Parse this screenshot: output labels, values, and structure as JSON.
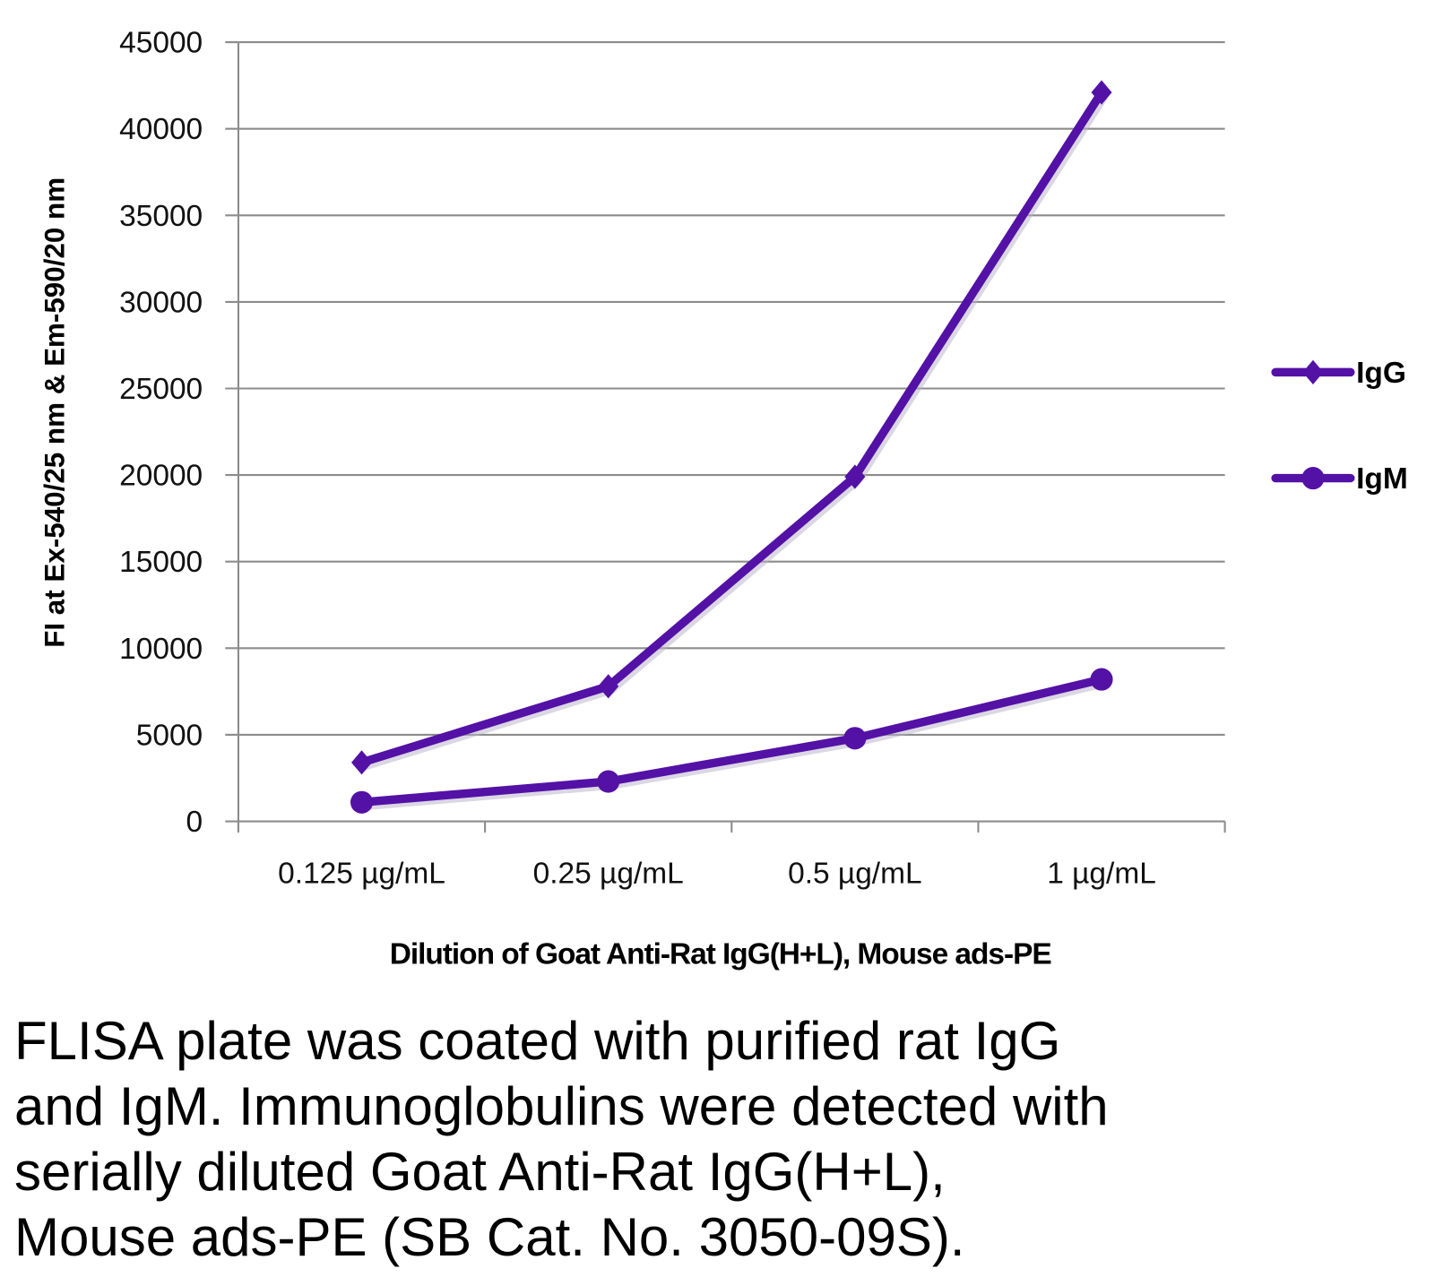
{
  "chart_data": {
    "type": "line",
    "title": "",
    "xlabel": "Dilution of Goat Anti-Rat IgG(H+L), Mouse ads-PE",
    "ylabel": "FI at Ex-540/25 nm & Em-590/20 nm",
    "categories": [
      "0.125 µg/mL",
      "0.25 µg/mL",
      "0.5 µg/mL",
      "1 µg/mL"
    ],
    "ylim": [
      0,
      45000
    ],
    "yticks": [
      "0",
      "5000",
      "10000",
      "15000",
      "20000",
      "25000",
      "30000",
      "35000",
      "40000",
      "45000"
    ],
    "grid": true,
    "legend_position": "right",
    "series": [
      {
        "name": "IgG",
        "marker": "diamond",
        "color": "#5311a6",
        "values": [
          3400,
          7800,
          19900,
          42100
        ]
      },
      {
        "name": "IgM",
        "marker": "circle",
        "color": "#5311a6",
        "values": [
          1100,
          2300,
          4800,
          8200
        ]
      }
    ]
  },
  "caption": [
    "FLISA plate was coated with purified rat IgG",
    "and IgM.  Immunoglobulins were detected with",
    "serially diluted Goat Anti-Rat IgG(H+L),",
    "Mouse ads-PE (SB Cat. No. 3050-09S)."
  ]
}
